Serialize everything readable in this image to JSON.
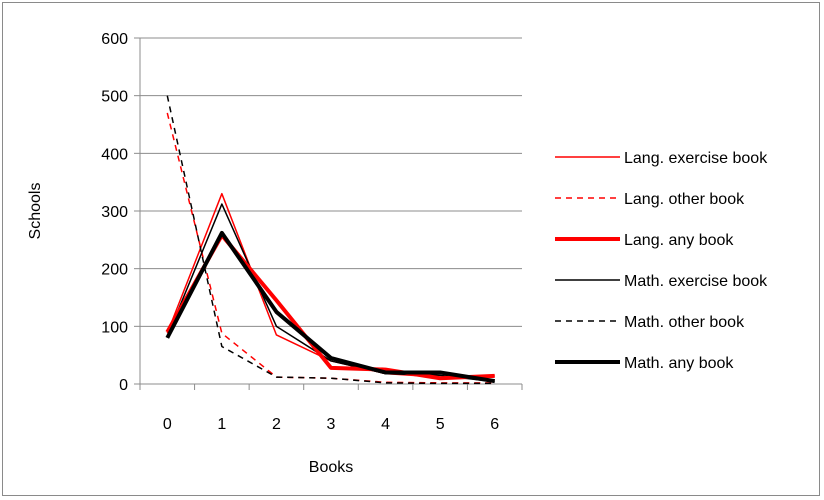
{
  "chart_data": {
    "type": "line",
    "title": "",
    "xlabel": "Books",
    "ylabel": "Schools",
    "x": [
      0,
      1,
      2,
      3,
      4,
      5,
      6
    ],
    "xticks": [
      "0",
      "1",
      "2",
      "3",
      "4",
      "5",
      "6"
    ],
    "ylim": [
      0,
      600
    ],
    "yticks": [
      "0",
      "100",
      "200",
      "300",
      "400",
      "500",
      "600"
    ],
    "grid": "horizontal",
    "legend_position": "right",
    "series": [
      {
        "name": "Lang. exercise book",
        "values": [
          88,
          330,
          85,
          40,
          18,
          12,
          14
        ],
        "color": "#ff0000",
        "dash": "solid",
        "weight": "thin"
      },
      {
        "name": "Lang. other book",
        "values": [
          470,
          88,
          12,
          10,
          3,
          2,
          2
        ],
        "color": "#ff0000",
        "dash": "dashed",
        "weight": "thin"
      },
      {
        "name": "Lang. any book",
        "values": [
          90,
          258,
          145,
          28,
          25,
          10,
          14
        ],
        "color": "#ff0000",
        "dash": "solid",
        "weight": "thick"
      },
      {
        "name": "Math. exercise book",
        "values": [
          82,
          312,
          100,
          40,
          18,
          15,
          4
        ],
        "color": "#000000",
        "dash": "solid",
        "weight": "thin"
      },
      {
        "name": "Math. other book",
        "values": [
          500,
          65,
          12,
          10,
          2,
          1,
          1
        ],
        "color": "#000000",
        "dash": "dashed",
        "weight": "thin"
      },
      {
        "name": "Math. any book",
        "values": [
          80,
          262,
          125,
          45,
          20,
          20,
          5
        ],
        "color": "#000000",
        "dash": "solid",
        "weight": "thick"
      }
    ]
  }
}
